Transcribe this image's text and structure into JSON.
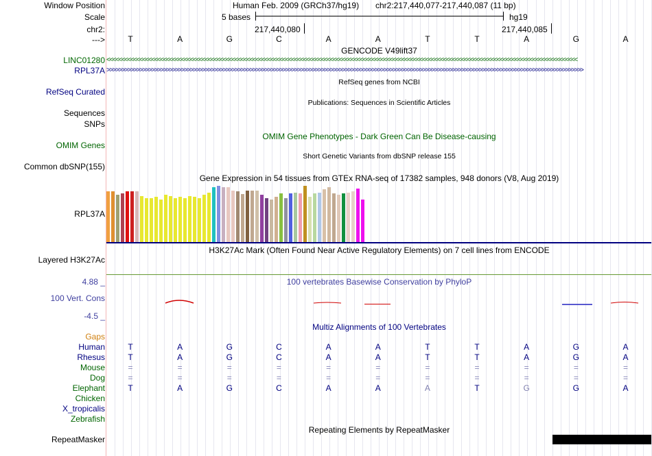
{
  "labels": {
    "window_position": "Window Position",
    "scale": "Scale",
    "chrom": "chr2:",
    "strand": "--->",
    "linc": "LINC01280",
    "rpl37a": "RPL37A",
    "refseq": "RefSeq Curated",
    "sequences": "Sequences",
    "snps": "SNPs",
    "omim": "OMIM Genes",
    "common_dbsnp": "Common dbSNP(155)",
    "gtex_gene": "RPL37A",
    "layered": "Layered H3K27Ac",
    "cons_max": "4.88 _",
    "cons_label": "100 Vert. Cons",
    "cons_min": "-4.5 _",
    "gaps": "Gaps",
    "repeatmasker": "RepeatMasker"
  },
  "header": {
    "assembly": "Human Feb. 2009 (GRCh37/hg19)",
    "position": "chr2:217,440,077-217,440,087 (11 bp)",
    "scale_text": "5 bases",
    "db": "hg19",
    "coord1": "217,440,080",
    "coord2": "217,440,085"
  },
  "sequence": [
    "T",
    "A",
    "G",
    "C",
    "A",
    "A",
    "T",
    "T",
    "A",
    "G",
    "A"
  ],
  "tracks": {
    "gencode_title": "GENCODE V49lift37",
    "linc_arrows": "<<<<<<<<<<<<<<<<<<<<<<<<<<<<<<<<<<<<<<<<<<<<<<<<<<<<<<<<<<<<<<<<<<<<<<<<<<<<<<<<<<<<<<<<<<<<<<<<<<<<<<<<<<<<<<<<<<<<<<<<<<<<<<<<<<<<<<<<<<<<<<<<<<<<<<<<<<<<<<",
    "rpl_arrows": ">>>>>>>>>>>>>>>>>>>>>>>>>>>>>>>>>>>>>>>>>>>>>>>>>>>>>>>>>>>>>>>>>>>>>>>>>>>>>>>>>>>>>>>>>>>>>>>>>>>>>>>>>>>>>>>>>>>>>>>>>>>>>>>>>>>>>>>>>>>>>>>>>>>>>>>>>>>>>>>>",
    "refseq_title": "RefSeq genes from NCBI",
    "pubs_title": "Publications: Sequences in Scientific Articles",
    "omim_title": "OMIM Gene Phenotypes - Dark Green Can Be Disease-causing",
    "dbsnp_title": "Short Genetic Variants from dbSNP release 155",
    "gtex_title": "Gene Expression in 54 tissues from GTEx RNA-seq of 17382 samples, 948 donors (V8, Aug 2019)",
    "h3k27ac_title": "H3K27Ac Mark (Often Found Near Active Regulatory Elements) on 7 cell lines from ENCODE",
    "phylop_title": "100 vertebrates Basewise Conservation by PhyloP",
    "multiz_title": "Multiz Alignments of 100 Vertebrates",
    "repeat_title": "Repeating Elements by RepeatMasker"
  },
  "gtex": {
    "values": [
      0.9,
      0.9,
      0.84,
      0.87,
      0.9,
      0.9,
      0.9,
      0.82,
      0.78,
      0.78,
      0.8,
      0.76,
      0.84,
      0.82,
      0.78,
      0.81,
      0.78,
      0.82,
      0.8,
      0.78,
      0.84,
      0.88,
      0.98,
      1.0,
      0.98,
      0.98,
      0.92,
      0.9,
      0.85,
      0.92,
      0.92,
      0.92,
      0.84,
      0.78,
      0.76,
      0.8,
      0.86,
      0.78,
      0.86,
      0.88,
      0.86,
      1.0,
      0.8,
      0.86,
      0.88,
      0.94,
      0.98,
      0.86,
      0.84,
      0.86,
      0.88,
      0.9,
      0.95,
      0.75
    ],
    "colors": [
      "#f0a040",
      "#e09030",
      "#a0a070",
      "#b04050",
      "#e01010",
      "#cc2020",
      "#d8b8b8",
      "#e8e830",
      "#e8e830",
      "#e8e830",
      "#e8e830",
      "#e8e830",
      "#e8e830",
      "#e8e830",
      "#e8e830",
      "#e8e830",
      "#e8e830",
      "#e8e830",
      "#e8e830",
      "#e8e830",
      "#e8e830",
      "#e8e830",
      "#20c0c0",
      "#8090e0",
      "#c8b0c0",
      "#e8c8c0",
      "#e8c8c0",
      "#a08870",
      "#c0a890",
      "#806040",
      "#c0a890",
      "#d0c0a8",
      "#9040a0",
      "#704080",
      "#c8b8a0",
      "#d0b090",
      "#88c040",
      "#9090a0",
      "#5060e0",
      "#a8c8a0",
      "#f0a0b0",
      "#c09020",
      "#d8e0b0",
      "#b8d8a0",
      "#b0c8e8",
      "#d8c0a8",
      "#d0b8a0",
      "#c0a890",
      "#e0c8b8",
      "#109040",
      "#e8d0c8",
      "#e8d0c8",
      "#ee10ee",
      "#ee10ee"
    ]
  },
  "multiz": {
    "species": [
      "Human",
      "Rhesus",
      "Mouse",
      "Dog",
      "Elephant",
      "Chicken",
      "X_tropicalis",
      "Zebrafish"
    ],
    "human": [
      "T",
      "A",
      "G",
      "C",
      "A",
      "A",
      "T",
      "T",
      "A",
      "G",
      "A"
    ],
    "rhesus": [
      "T",
      "A",
      "G",
      "C",
      "A",
      "A",
      "T",
      "T",
      "A",
      "G",
      "A"
    ],
    "mouse": [
      "=",
      "=",
      "=",
      "=",
      "=",
      "=",
      "=",
      "=",
      "=",
      "=",
      "="
    ],
    "dog": [
      "=",
      "=",
      "=",
      "=",
      "=",
      "=",
      "=",
      "=",
      "=",
      "=",
      "="
    ],
    "elephant": [
      "T",
      "A",
      "G",
      "C",
      "A",
      "A",
      "A",
      "T",
      "G",
      "G",
      "A"
    ]
  },
  "colors": {
    "linc_green": "#006600",
    "navy": "#000080",
    "omim_green": "#006400",
    "phylop_blue": "#3f3f9f",
    "h3k27ac_line": "#669933",
    "gaps_orange": "#d08010",
    "species_green": "#006400",
    "lowcons_gray": "#8080b0"
  }
}
